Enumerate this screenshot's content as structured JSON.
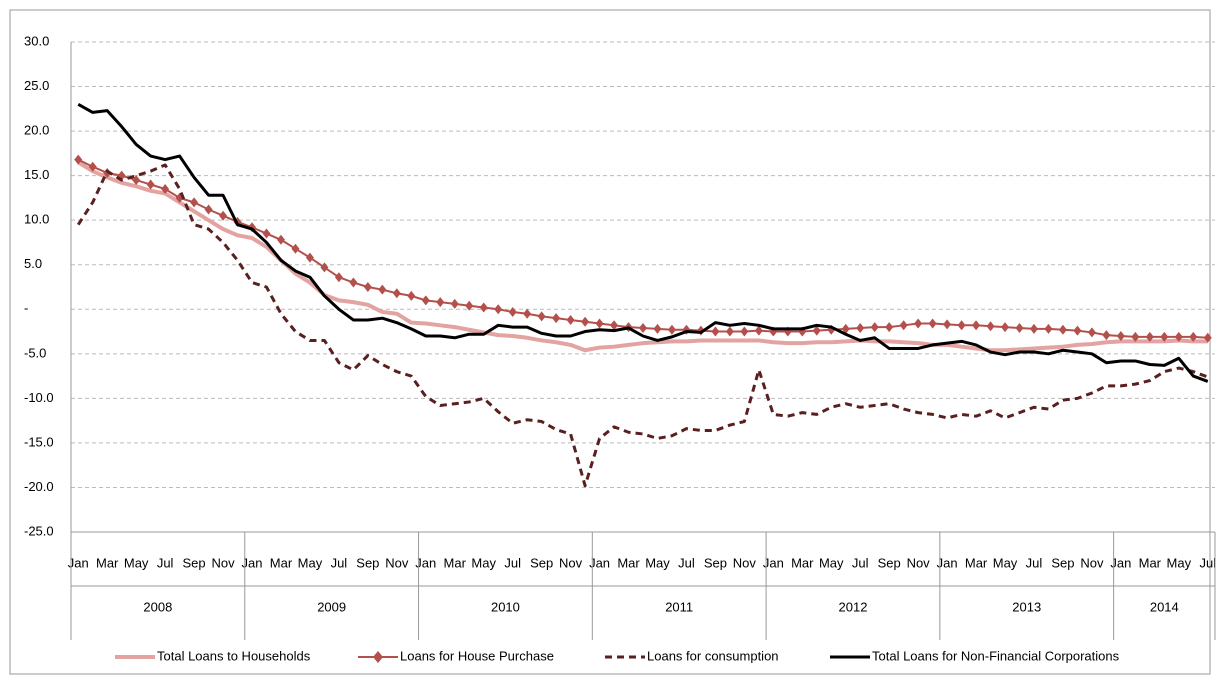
{
  "chart_data": {
    "type": "line",
    "categories": [
      "Jan",
      null,
      "Mar",
      null,
      "May",
      null,
      "Jul",
      null,
      "Sep",
      null,
      "Nov",
      null,
      "Jan",
      null,
      "Mar",
      null,
      "May",
      null,
      "Jul",
      null,
      "Sep",
      null,
      "Nov",
      null,
      "Jan",
      null,
      "Mar",
      null,
      "May",
      null,
      "Jul",
      null,
      "Sep",
      null,
      "Nov",
      null,
      "Jan",
      null,
      "Mar",
      null,
      "May",
      null,
      "Jul",
      null,
      "Sep",
      null,
      "Nov",
      null,
      "Jan",
      null,
      "Mar",
      null,
      "May",
      null,
      "Jul",
      null,
      "Sep",
      null,
      "Nov",
      null,
      "Jan",
      null,
      "Mar",
      null,
      "May",
      null,
      "Jul",
      null,
      "Sep",
      null,
      "Nov",
      null,
      "Jan",
      null,
      "Mar",
      null,
      "May",
      null,
      "Jul"
    ],
    "x_groups": [
      "2008",
      "2009",
      "2010",
      "2011",
      "2012",
      "2013",
      "2014"
    ],
    "ylim": [
      -25,
      30
    ],
    "yticks": [
      {
        "value": 30,
        "label": "30.0"
      },
      {
        "value": 25,
        "label": "25.0"
      },
      {
        "value": 20,
        "label": "20.0"
      },
      {
        "value": 15,
        "label": "15.0"
      },
      {
        "value": 10,
        "label": "10.0"
      },
      {
        "value": 5,
        "label": "5.0"
      },
      {
        "value": 0,
        "label": "-"
      },
      {
        "value": -5,
        "label": "-5.0"
      },
      {
        "value": -10,
        "label": "-10.0"
      },
      {
        "value": -15,
        "label": "-15.0"
      },
      {
        "value": -20,
        "label": "-20.0"
      },
      {
        "value": -25,
        "label": "-25.0"
      }
    ],
    "grid": true,
    "legend": "bottom",
    "series": [
      {
        "name": "Total Loans to Households",
        "color": "#e3a3a0",
        "width": 4,
        "line_style": "solid",
        "values": [
          16.5,
          15.5,
          14.8,
          14.2,
          13.8,
          13.3,
          13.0,
          12.0,
          11.0,
          10.0,
          9.0,
          8.3,
          8.0,
          7.0,
          5.5,
          4.0,
          3.0,
          1.6,
          1.0,
          0.8,
          0.5,
          -0.3,
          -0.5,
          -1.5,
          -1.6,
          -1.8,
          -2.0,
          -2.3,
          -2.6,
          -2.9,
          -3.0,
          -3.2,
          -3.5,
          -3.7,
          -4.0,
          -4.6,
          -4.3,
          -4.2,
          -4.0,
          -3.8,
          -3.7,
          -3.6,
          -3.6,
          -3.5,
          -3.5,
          -3.5,
          -3.5,
          -3.5,
          -3.7,
          -3.8,
          -3.8,
          -3.7,
          -3.7,
          -3.6,
          -3.5,
          -3.6,
          -3.6,
          -3.7,
          -3.8,
          -4.0,
          -4.0,
          -4.2,
          -4.4,
          -4.6,
          -4.6,
          -4.5,
          -4.4,
          -4.3,
          -4.2,
          -4.0,
          -3.9,
          -3.7,
          -3.6,
          -3.6,
          -3.6,
          -3.6,
          -3.5,
          -3.6,
          -3.6
        ]
      },
      {
        "name": "Loans for House Purchase",
        "color": "#b4504c",
        "width": 2,
        "line_style": "solid",
        "marker": "diamond",
        "values": [
          16.8,
          16.0,
          15.3,
          15.0,
          14.5,
          14.0,
          13.5,
          12.5,
          12.0,
          11.2,
          10.5,
          9.8,
          9.2,
          8.5,
          7.8,
          6.8,
          5.8,
          4.7,
          3.6,
          3.0,
          2.5,
          2.2,
          1.8,
          1.5,
          1.0,
          0.8,
          0.6,
          0.4,
          0.2,
          0.0,
          -0.3,
          -0.5,
          -0.8,
          -1.0,
          -1.2,
          -1.4,
          -1.6,
          -1.8,
          -2.0,
          -2.1,
          -2.2,
          -2.3,
          -2.3,
          -2.4,
          -2.5,
          -2.5,
          -2.5,
          -2.4,
          -2.5,
          -2.5,
          -2.5,
          -2.4,
          -2.3,
          -2.2,
          -2.1,
          -2.0,
          -2.0,
          -1.8,
          -1.6,
          -1.6,
          -1.7,
          -1.8,
          -1.8,
          -1.9,
          -2.0,
          -2.1,
          -2.2,
          -2.2,
          -2.3,
          -2.4,
          -2.6,
          -2.9,
          -3.0,
          -3.1,
          -3.1,
          -3.1,
          -3.1,
          -3.1,
          -3.2
        ]
      },
      {
        "name": "Loans for consumption",
        "color": "#5a2020",
        "width": 3,
        "line_style": "dashed",
        "values": [
          9.5,
          12.0,
          15.5,
          14.5,
          15.0,
          15.5,
          16.2,
          13.5,
          9.5,
          9.0,
          7.5,
          5.5,
          3.0,
          2.5,
          -0.5,
          -2.5,
          -3.5,
          -3.5,
          -6.0,
          -6.8,
          -5.2,
          -6.2,
          -7.0,
          -7.5,
          -9.8,
          -10.8,
          -10.6,
          -10.4,
          -10.0,
          -11.5,
          -12.8,
          -12.4,
          -12.6,
          -13.5,
          -14.0,
          -19.8,
          -14.5,
          -13.2,
          -13.8,
          -14.0,
          -14.5,
          -14.2,
          -13.4,
          -13.6,
          -13.6,
          -13.0,
          -12.6,
          -6.8,
          -11.8,
          -12.0,
          -11.6,
          -11.8,
          -11.0,
          -10.6,
          -11.0,
          -10.8,
          -10.6,
          -11.2,
          -11.6,
          -11.8,
          -12.2,
          -11.8,
          -12.0,
          -11.4,
          -12.2,
          -11.6,
          -11.0,
          -11.2,
          -10.2,
          -10.0,
          -9.4,
          -8.6,
          -8.6,
          -8.4,
          -8.0,
          -7.0,
          -6.6,
          -7.0,
          -7.6
        ]
      },
      {
        "name": "Total Loans for Non-Financial  Corporations",
        "color": "#000000",
        "width": 3,
        "line_style": "solid",
        "values": [
          23.0,
          22.1,
          22.3,
          20.5,
          18.5,
          17.2,
          16.8,
          17.2,
          14.8,
          12.8,
          12.8,
          9.5,
          9.0,
          7.5,
          5.5,
          4.3,
          3.6,
          1.5,
          0.0,
          -1.2,
          -1.2,
          -1.0,
          -1.5,
          -2.2,
          -3.0,
          -3.0,
          -3.2,
          -2.8,
          -2.8,
          -1.8,
          -2.0,
          -2.0,
          -2.7,
          -3.0,
          -3.0,
          -2.5,
          -2.3,
          -2.4,
          -2.1,
          -3.0,
          -3.5,
          -3.1,
          -2.5,
          -2.6,
          -1.5,
          -1.8,
          -1.6,
          -1.8,
          -2.2,
          -2.2,
          -2.2,
          -1.8,
          -2.0,
          -2.8,
          -3.5,
          -3.2,
          -4.4,
          -4.4,
          -4.4,
          -4.0,
          -3.8,
          -3.6,
          -4.0,
          -4.8,
          -5.1,
          -4.8,
          -4.8,
          -5.0,
          -4.6,
          -4.8,
          -5.0,
          -6.0,
          -5.8,
          -5.8,
          -6.2,
          -6.3,
          -5.5,
          -7.5,
          -8.1
        ]
      }
    ]
  }
}
